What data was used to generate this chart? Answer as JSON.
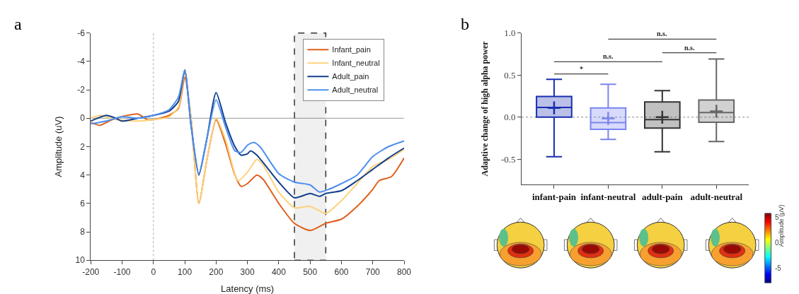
{
  "chart_data": [
    {
      "type": "line",
      "title": "a",
      "xlabel": "Latency (ms)",
      "ylabel": "Amplitude (uV)",
      "xlim": [
        -200,
        800
      ],
      "xticks": [
        -200,
        -100,
        0,
        100,
        200,
        300,
        400,
        500,
        600,
        700,
        800
      ],
      "ylim": [
        10,
        -6
      ],
      "yticks": [
        -6,
        -4,
        -2,
        0,
        2,
        4,
        6,
        8,
        10
      ],
      "grid": false,
      "legend": "top right",
      "ref_lines": [
        {
          "axis": "x",
          "value": 0,
          "color": "#aaaaaa",
          "line_style": "dotted"
        },
        {
          "axis": "y",
          "value": 0,
          "color": "#999999",
          "line_style": "solid"
        }
      ],
      "bands": [
        {
          "axis": "x",
          "from": 450,
          "to": 550,
          "color": "#333333"
        }
      ],
      "series": [
        {
          "name": "Infant_pain",
          "color": "#e0601a",
          "x": [
            -200,
            -170,
            -150,
            -120,
            -50,
            -20,
            0,
            50,
            80,
            100,
            120,
            145,
            170,
            200,
            230,
            260,
            280,
            300,
            330,
            350,
            400,
            450,
            500,
            550,
            600,
            650,
            700,
            720,
            760,
            800
          ],
          "values": [
            0.3,
            0.5,
            0.3,
            0.0,
            -0.3,
            0.1,
            0.1,
            -0.2,
            -0.7,
            -2.9,
            0.0,
            6.0,
            3.0,
            0.1,
            1.8,
            4.0,
            4.8,
            4.6,
            4.0,
            4.3,
            6.0,
            7.4,
            7.9,
            7.4,
            7.1,
            6.2,
            5.0,
            4.4,
            4.1,
            2.8
          ]
        },
        {
          "name": "Infant_neutral",
          "color": "#fdd27a",
          "x": [
            -200,
            -170,
            -120,
            -50,
            0,
            50,
            80,
            100,
            120,
            145,
            170,
            200,
            230,
            270,
            300,
            330,
            350,
            400,
            450,
            500,
            550,
            600,
            650,
            700,
            750,
            800
          ],
          "values": [
            0.0,
            -0.2,
            0.1,
            0.2,
            0.1,
            -0.1,
            -0.8,
            -3.2,
            0.0,
            6.0,
            3.0,
            0.0,
            1.5,
            4.4,
            3.8,
            2.9,
            3.3,
            5.2,
            6.3,
            6.2,
            6.7,
            5.8,
            4.6,
            3.4,
            2.9,
            2.2
          ]
        },
        {
          "name": "Adult_pain",
          "color": "#123e8c",
          "x": [
            -200,
            -150,
            -120,
            -100,
            -50,
            0,
            50,
            80,
            100,
            120,
            145,
            170,
            200,
            230,
            260,
            280,
            300,
            310,
            330,
            400,
            450,
            500,
            530,
            550,
            600,
            650,
            700,
            750,
            800
          ],
          "values": [
            0.2,
            -0.2,
            0.0,
            0.2,
            0.0,
            -0.2,
            -0.5,
            -1.2,
            -3.4,
            0.5,
            4.0,
            1.5,
            -1.8,
            0.3,
            2.0,
            2.6,
            2.5,
            2.3,
            2.6,
            4.5,
            5.6,
            5.3,
            5.5,
            5.3,
            5.1,
            4.4,
            3.6,
            2.8,
            2.1
          ]
        },
        {
          "name": "Adult_neutral",
          "color": "#4d8ff0",
          "x": [
            -200,
            -150,
            -100,
            -50,
            0,
            50,
            80,
            100,
            120,
            145,
            170,
            200,
            230,
            260,
            280,
            300,
            320,
            340,
            400,
            450,
            500,
            530,
            560,
            600,
            650,
            700,
            750,
            800
          ],
          "values": [
            0.4,
            0.2,
            -0.1,
            0.0,
            -0.2,
            -0.6,
            -1.5,
            -3.4,
            0.5,
            3.9,
            1.5,
            -1.3,
            0.6,
            2.3,
            2.4,
            1.9,
            1.7,
            2.0,
            3.9,
            4.5,
            4.7,
            5.2,
            5.0,
            4.6,
            4.0,
            2.7,
            2.0,
            1.6
          ]
        }
      ]
    },
    {
      "type": "box",
      "title": "b",
      "ylabel": "Adaptive change of high alpha power",
      "categories": [
        "infant-pain",
        "infant-neutral",
        "adult-pain",
        "adult-neutral"
      ],
      "ylim": [
        -0.8,
        1.0
      ],
      "yticks": [
        {
          "value": -0.5,
          "label": "-0.5"
        },
        {
          "value": 0,
          "label": "0.0"
        },
        {
          "value": 0.5,
          "label": "0.5"
        },
        {
          "value": 1,
          "label": "1.0"
        }
      ],
      "grid": false,
      "legend": false,
      "ref_lines": [
        {
          "axis": "y",
          "value": 0,
          "color": "#888888",
          "line_style": "dotted"
        }
      ],
      "annotations": [
        "*",
        "n.s.",
        "n.s.",
        "n.s."
      ],
      "colors": [
        "#1a2eb0",
        "#7b84f0",
        "#333333",
        "#666666"
      ],
      "boxes": [
        {
          "low": -0.47,
          "q1": 0.0,
          "median": 0.115,
          "q3": 0.245,
          "high": 0.45,
          "mean": 0.11
        },
        {
          "low": -0.265,
          "q1": -0.145,
          "median": -0.065,
          "q3": 0.11,
          "high": 0.39,
          "mean": -0.015
        },
        {
          "low": -0.41,
          "q1": -0.13,
          "median": -0.03,
          "q3": 0.18,
          "high": 0.315,
          "mean": 0.0
        },
        {
          "low": -0.29,
          "q1": -0.06,
          "median": 0.055,
          "q3": 0.205,
          "high": 0.69,
          "mean": 0.07
        }
      ]
    },
    {
      "type": "other",
      "clabel": "Amplitude (μV)",
      "annotations": [
        "5",
        "0",
        "-5"
      ]
    }
  ]
}
